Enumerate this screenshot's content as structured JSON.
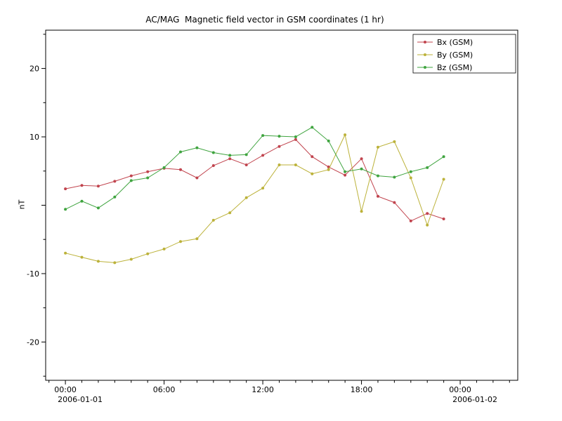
{
  "chart_data": {
    "type": "line",
    "title": "AC/MAG  Magnetic field vector in GSM coordinates (1 hr)",
    "xlabel": "",
    "ylabel": "nT",
    "grid": false,
    "legend_position": "top-right",
    "xlim_hours": [
      -1.2,
      27.5
    ],
    "ylim": [
      -25.6,
      25.6
    ],
    "x_hours": [
      0,
      1,
      2,
      3,
      4,
      5,
      6,
      7,
      8,
      9,
      10,
      11,
      12,
      13,
      14,
      15,
      16,
      17,
      18,
      19,
      20,
      21,
      22,
      23
    ],
    "series": [
      {
        "name": "Bx (GSM)",
        "color": "#c1444e",
        "values": [
          2.4,
          2.9,
          2.8,
          3.5,
          4.3,
          4.9,
          5.4,
          5.2,
          4.0,
          5.8,
          6.8,
          5.9,
          7.3,
          8.6,
          9.6,
          7.1,
          5.6,
          4.4,
          6.8,
          1.3,
          0.4,
          -2.3,
          -1.2,
          -2.0
        ]
      },
      {
        "name": "By (GSM)",
        "color": "#bcb23a",
        "values": [
          -7.0,
          -7.6,
          -8.2,
          -8.4,
          -7.9,
          -7.1,
          -6.4,
          -5.3,
          -4.9,
          -2.2,
          -1.1,
          1.1,
          2.5,
          5.9,
          5.9,
          4.6,
          5.2,
          10.3,
          -0.9,
          8.5,
          9.3,
          4.0,
          -2.9,
          3.8
        ]
      },
      {
        "name": "Bz (GSM)",
        "color": "#3fa43f",
        "values": [
          -0.6,
          0.6,
          -0.4,
          1.2,
          3.6,
          4.0,
          5.5,
          7.8,
          8.4,
          7.7,
          7.3,
          7.4,
          10.2,
          10.1,
          10.0,
          11.4,
          9.4,
          4.9,
          5.3,
          4.3,
          4.1,
          4.9,
          5.5,
          7.1
        ]
      }
    ],
    "xticks": [
      {
        "hour": 0,
        "label": "00:00",
        "sublabel": "2006-01-01"
      },
      {
        "hour": 6,
        "label": "06:00",
        "sublabel": ""
      },
      {
        "hour": 12,
        "label": "12:00",
        "sublabel": ""
      },
      {
        "hour": 18,
        "label": "18:00",
        "sublabel": ""
      },
      {
        "hour": 24,
        "label": "00:00",
        "sublabel": "2006-01-02"
      }
    ],
    "yticks": [
      {
        "value": -20,
        "label": "-20"
      },
      {
        "value": -10,
        "label": "-10"
      },
      {
        "value": 0,
        "label": ""
      },
      {
        "value": 10,
        "label": "10"
      },
      {
        "value": 20,
        "label": "20"
      }
    ]
  }
}
